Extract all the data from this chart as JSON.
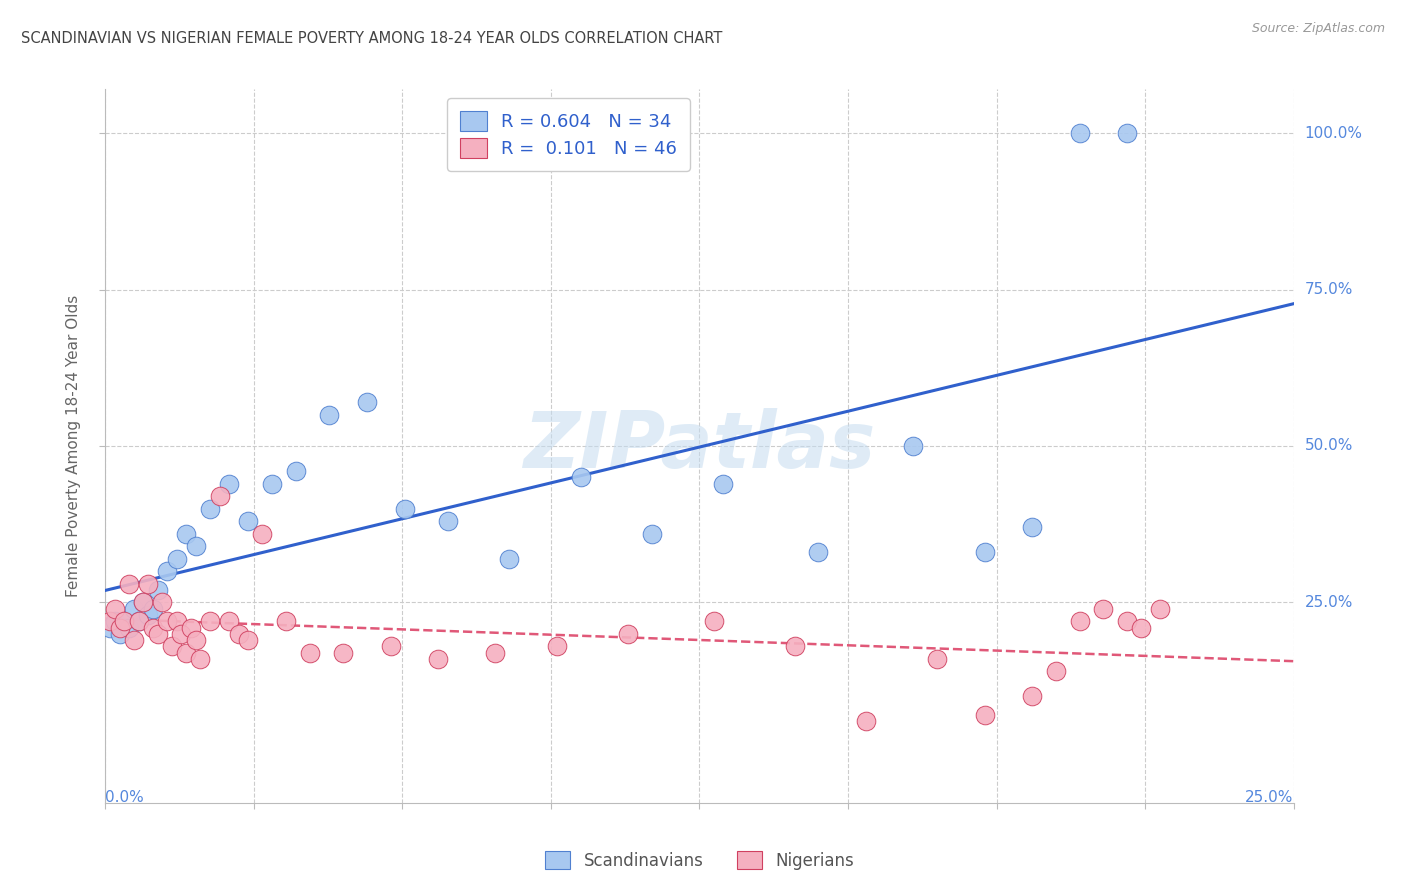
{
  "title": "SCANDINAVIAN VS NIGERIAN FEMALE POVERTY AMONG 18-24 YEAR OLDS CORRELATION CHART",
  "source": "Source: ZipAtlas.com",
  "ylabel": "Female Poverty Among 18-24 Year Olds",
  "xlim": [
    0.0,
    0.25
  ],
  "ylim_data": [
    0.0,
    1.0
  ],
  "scand_color": "#a8c8f0",
  "scand_edge_color": "#5080d0",
  "nig_color": "#f5b0c0",
  "nig_edge_color": "#d04060",
  "scand_line_color": "#3060cc",
  "nig_line_color": "#e05878",
  "scand_R": "0.604",
  "scand_N": "34",
  "nig_R": "0.101",
  "nig_N": "46",
  "watermark": "ZIPatlas",
  "axis_label_color": "#5588dd",
  "title_color": "#444444",
  "grid_color": "#cccccc",
  "legend_label_scand": "Scandinavians",
  "legend_label_nig": "Nigerians",
  "ytick_vals": [
    0.25,
    0.5,
    0.75,
    1.0
  ],
  "ytick_labels": [
    "25.0%",
    "50.0%",
    "75.0%",
    "100.0%"
  ],
  "scand_x": [
    0.001,
    0.002,
    0.003,
    0.004,
    0.005,
    0.006,
    0.007,
    0.008,
    0.009,
    0.01,
    0.011,
    0.013,
    0.015,
    0.017,
    0.019,
    0.022,
    0.026,
    0.03,
    0.035,
    0.04,
    0.047,
    0.055,
    0.063,
    0.072,
    0.085,
    0.1,
    0.115,
    0.13,
    0.15,
    0.17,
    0.185,
    0.195,
    0.205,
    0.215
  ],
  "scand_y": [
    0.21,
    0.22,
    0.2,
    0.22,
    0.21,
    0.24,
    0.22,
    0.25,
    0.23,
    0.24,
    0.27,
    0.3,
    0.32,
    0.36,
    0.34,
    0.4,
    0.44,
    0.38,
    0.44,
    0.46,
    0.55,
    0.57,
    0.4,
    0.38,
    0.32,
    0.45,
    0.36,
    0.44,
    0.33,
    0.5,
    0.33,
    0.37,
    1.0,
    1.0
  ],
  "nig_x": [
    0.001,
    0.002,
    0.003,
    0.004,
    0.005,
    0.006,
    0.007,
    0.008,
    0.009,
    0.01,
    0.011,
    0.012,
    0.013,
    0.014,
    0.015,
    0.016,
    0.017,
    0.018,
    0.019,
    0.02,
    0.022,
    0.024,
    0.026,
    0.028,
    0.03,
    0.033,
    0.038,
    0.043,
    0.05,
    0.06,
    0.07,
    0.082,
    0.095,
    0.11,
    0.128,
    0.145,
    0.16,
    0.175,
    0.185,
    0.195,
    0.2,
    0.205,
    0.21,
    0.215,
    0.218,
    0.222
  ],
  "nig_y": [
    0.22,
    0.24,
    0.21,
    0.22,
    0.28,
    0.19,
    0.22,
    0.25,
    0.28,
    0.21,
    0.2,
    0.25,
    0.22,
    0.18,
    0.22,
    0.2,
    0.17,
    0.21,
    0.19,
    0.16,
    0.22,
    0.42,
    0.22,
    0.2,
    0.19,
    0.36,
    0.22,
    0.17,
    0.17,
    0.18,
    0.16,
    0.17,
    0.18,
    0.2,
    0.22,
    0.18,
    0.06,
    0.16,
    0.07,
    0.1,
    0.14,
    0.22,
    0.24,
    0.22,
    0.21,
    0.24
  ]
}
